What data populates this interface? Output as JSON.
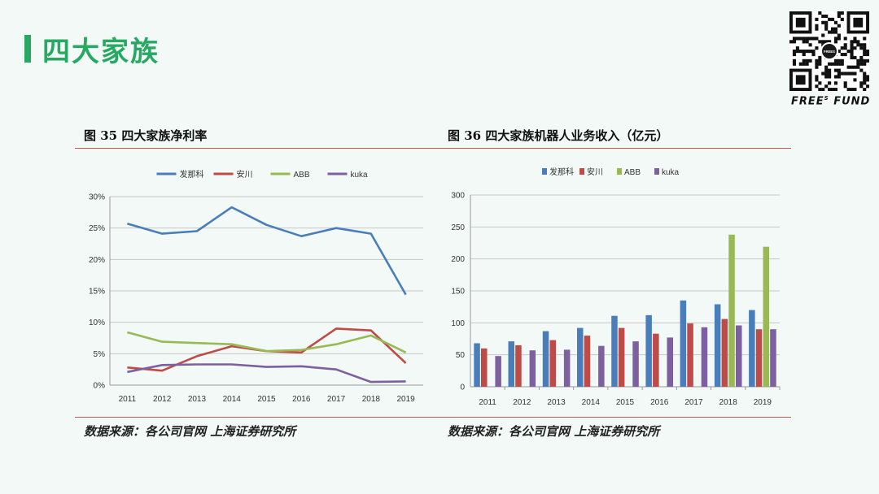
{
  "page": {
    "title": "四大家族",
    "brand": "FREE",
    "brand_sup": "S",
    "brand_tail": " FUND",
    "qr_badge": "FREES"
  },
  "colors": {
    "fanuc": "#4a7ebb",
    "yaskawa": "#be4b48",
    "abb": "#98b954",
    "kuka": "#7d60a0",
    "accent": "#27a863",
    "rule": "#d9534f"
  },
  "figures": [
    {
      "title": "图  35  四大家族净利率",
      "source": "数据来源：各公司官网  上海证券研究所"
    },
    {
      "title": "图  36 四大家族机器人业务收入（亿元）",
      "source": "数据来源：各公司官网  上海证券研究所"
    }
  ],
  "chart_data": [
    {
      "type": "line",
      "title": "",
      "x": [
        "2011",
        "2012",
        "2013",
        "2014",
        "2015",
        "2016",
        "2017",
        "2018",
        "2019"
      ],
      "series": [
        {
          "name": "发那科",
          "values": [
            25.7,
            24.1,
            24.5,
            28.3,
            25.5,
            23.7,
            25.0,
            24.1,
            14.4
          ]
        },
        {
          "name": "安川",
          "values": [
            2.8,
            2.3,
            4.6,
            6.2,
            5.4,
            5.2,
            9.0,
            8.7,
            3.5
          ]
        },
        {
          "name": "ABB",
          "values": [
            8.4,
            6.9,
            6.7,
            6.5,
            5.4,
            5.6,
            6.5,
            7.9,
            5.2
          ]
        },
        {
          "name": "kuka",
          "values": [
            2.1,
            3.2,
            3.3,
            3.3,
            2.9,
            3.0,
            2.5,
            0.5,
            0.6
          ]
        }
      ],
      "yticks": [
        "0%",
        "5%",
        "10%",
        "15%",
        "20%",
        "25%",
        "30%"
      ],
      "ylim": [
        0,
        30
      ],
      "grid": true,
      "legend": "top"
    },
    {
      "type": "bar",
      "title": "",
      "categories": [
        "2011",
        "2012",
        "2013",
        "2014",
        "2015",
        "2016",
        "2017",
        "2018",
        "2019"
      ],
      "series": [
        {
          "name": "发那科",
          "values": [
            68,
            71,
            87,
            92,
            111,
            112,
            135,
            129,
            120
          ]
        },
        {
          "name": "安川",
          "values": [
            60,
            65,
            73,
            80,
            92,
            83,
            99,
            106,
            90
          ]
        },
        {
          "name": "ABB",
          "values": [
            0,
            0,
            0,
            0,
            0,
            0,
            0,
            238,
            219
          ]
        },
        {
          "name": "kuka",
          "values": [
            48,
            57,
            58,
            64,
            71,
            77,
            93,
            96,
            90
          ]
        }
      ],
      "yticks": [
        "0",
        "50",
        "100",
        "150",
        "200",
        "250",
        "300"
      ],
      "ylim": [
        0,
        300
      ],
      "grid": true,
      "legend": "top"
    }
  ]
}
